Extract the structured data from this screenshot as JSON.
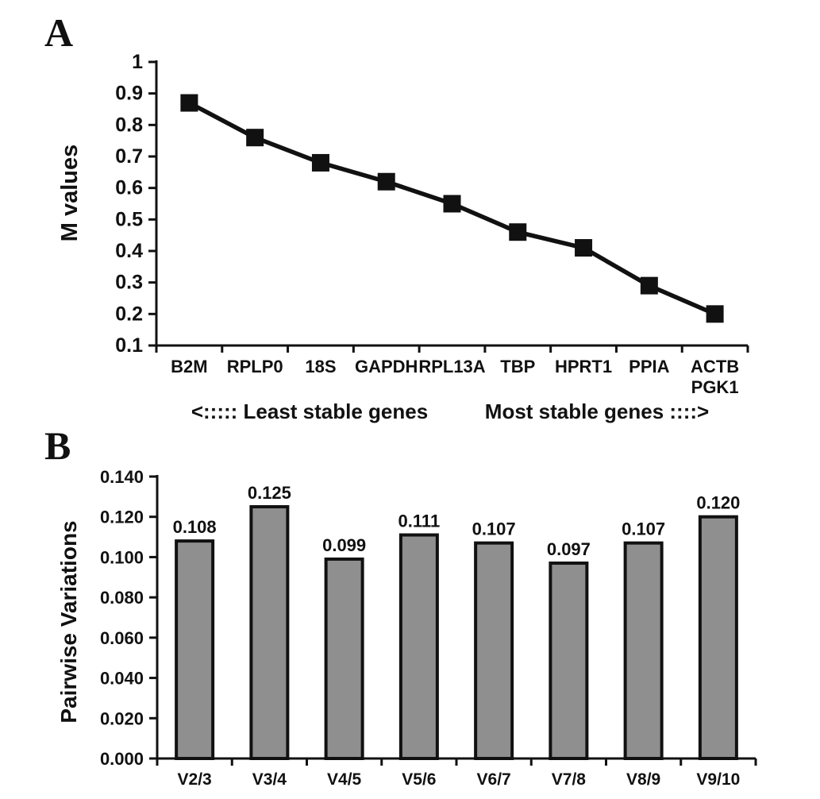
{
  "figure": {
    "panel_a_label": "A",
    "panel_b_label": "B"
  },
  "chart_data": [
    {
      "type": "line",
      "panel": "A",
      "title": "",
      "xlabel": "",
      "ylabel": "M values",
      "categories": [
        [
          "B2M"
        ],
        [
          "RPLP0"
        ],
        [
          "18S"
        ],
        [
          "GAPDH"
        ],
        [
          "RPL13A"
        ],
        [
          "TBP"
        ],
        [
          "HPRT1"
        ],
        [
          "PPIA"
        ],
        [
          "ACTB",
          "PGK1"
        ]
      ],
      "values": [
        0.87,
        0.76,
        0.68,
        0.62,
        0.55,
        0.46,
        0.41,
        0.29,
        0.2
      ],
      "ytick_values": [
        1,
        0.9,
        0.8,
        0.7,
        0.6,
        0.5,
        0.4,
        0.3,
        0.2,
        0.1
      ],
      "ytick_labels": [
        "1",
        "0.9",
        "0.8",
        "0.7",
        "0.6",
        "0.5",
        "0.4",
        "0.3",
        "0.2",
        "0.1"
      ],
      "ylim": [
        0.1,
        1.0
      ],
      "grid": false,
      "legend": "none",
      "marker": "square",
      "line_color": "#111111",
      "annotations": {
        "left": "<:::::  Least stable genes",
        "right": "Most stable genes ::::>"
      }
    },
    {
      "type": "bar",
      "panel": "B",
      "title": "",
      "xlabel": "",
      "ylabel": "Pairwise Variations",
      "categories": [
        "V2/3",
        "V3/4",
        "V4/5",
        "V5/6",
        "V6/7",
        "V7/8",
        "V8/9",
        "V9/10"
      ],
      "values": [
        0.108,
        0.125,
        0.099,
        0.111,
        0.107,
        0.097,
        0.107,
        0.12
      ],
      "data_labels": [
        "0.108",
        "0.125",
        "0.099",
        "0.111",
        "0.107",
        "0.097",
        "0.107",
        "0.120"
      ],
      "ytick_values": [
        0.0,
        0.02,
        0.04,
        0.06,
        0.08,
        0.1,
        0.12,
        0.14
      ],
      "ytick_labels": [
        "0.000",
        "0.020",
        "0.040",
        "0.060",
        "0.080",
        "0.100",
        "0.120",
        "0.140"
      ],
      "ylim": [
        0.0,
        0.14
      ],
      "grid": false,
      "legend": "none",
      "bar_fill": "#8f8f8f",
      "bar_border": "#111111"
    }
  ]
}
